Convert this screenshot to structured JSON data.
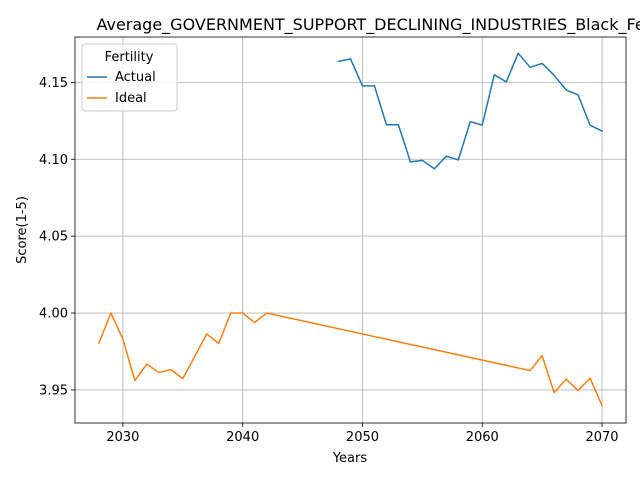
{
  "chart_data": {
    "type": "line",
    "title": "Average_GOVERNMENT_SUPPORT_DECLINING_INDUSTRIES_Black_Female_C",
    "xlabel": "Years",
    "ylabel": "Score(1-5)",
    "xlim": [
      2026,
      2072
    ],
    "ylim": [
      3.9285,
      4.1795
    ],
    "x_ticks": [
      2030,
      2040,
      2050,
      2060,
      2070
    ],
    "y_ticks": [
      3.95,
      4.0,
      4.05,
      4.1,
      4.15
    ],
    "x_tick_labels": [
      "2030",
      "2040",
      "2050",
      "2060",
      "2070"
    ],
    "y_tick_labels": [
      "3.95",
      "4.00",
      "4.05",
      "4.10",
      "4.15"
    ],
    "grid": true,
    "legend": {
      "title": "Fertility",
      "placement": "upper-left"
    },
    "series": [
      {
        "name": "Actual",
        "color": "#1f77b4",
        "points": [
          [
            2048,
            4.1636
          ],
          [
            2049,
            4.1653
          ],
          [
            2050,
            4.1477
          ],
          [
            2051,
            4.1477
          ],
          [
            2052,
            4.1224
          ],
          [
            2053,
            4.1224
          ],
          [
            2054,
            4.0983
          ],
          [
            2055,
            4.0993
          ],
          [
            2056,
            4.0938
          ],
          [
            2057,
            4.102
          ],
          [
            2058,
            4.0996
          ],
          [
            2059,
            4.1245
          ],
          [
            2060,
            4.1222
          ],
          [
            2061,
            4.1549
          ],
          [
            2062,
            4.1503
          ],
          [
            2063,
            4.1689
          ],
          [
            2064,
            4.1598
          ],
          [
            2065,
            4.1623
          ],
          [
            2066,
            4.1546
          ],
          [
            2067,
            4.1451
          ],
          [
            2068,
            4.1418
          ],
          [
            2069,
            4.1222
          ],
          [
            2070,
            4.1183
          ]
        ]
      },
      {
        "name": "Ideal",
        "color": "#ff7f0e",
        "points": [
          [
            2028,
            3.9805
          ],
          [
            2029,
            4.0
          ],
          [
            2030,
            3.983
          ],
          [
            2031,
            3.9561
          ],
          [
            2032,
            3.9668
          ],
          [
            2033,
            3.9613
          ],
          [
            2034,
            3.9633
          ],
          [
            2035,
            3.9574
          ],
          [
            2037,
            3.9864
          ],
          [
            2038,
            3.9802
          ],
          [
            2039,
            4.0
          ],
          [
            2040,
            4.0
          ],
          [
            2041,
            3.9938
          ],
          [
            2042,
            4.0
          ],
          [
            2064,
            3.9626
          ],
          [
            2065,
            3.9723
          ],
          [
            2066,
            3.9483
          ],
          [
            2067,
            3.957
          ],
          [
            2068,
            3.9496
          ],
          [
            2069,
            3.9577
          ],
          [
            2070,
            3.9398
          ]
        ]
      }
    ]
  }
}
